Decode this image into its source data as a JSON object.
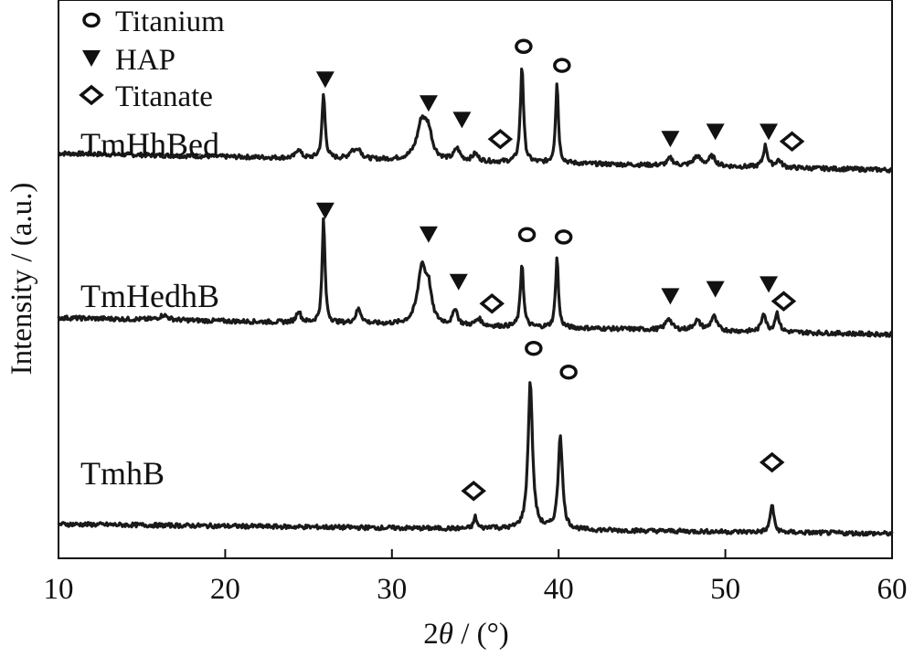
{
  "chart_data": {
    "type": "line",
    "title": "",
    "xlabel_prefix": "2",
    "xlabel_symbol": "θ",
    "xlabel_suffix": " / (°)",
    "ylabel": "Intensity / (a.u.)",
    "xlim": [
      10,
      60
    ],
    "x_ticks": [
      "10",
      "20",
      "30",
      "40",
      "50",
      "60"
    ],
    "y_ticks_shown": false,
    "grid": false,
    "legend_position": "top-left",
    "legend": [
      {
        "marker": "circle",
        "label": "Titanium"
      },
      {
        "marker": "triangle",
        "label": "HAP"
      },
      {
        "marker": "diamond",
        "label": "Titanate"
      }
    ],
    "series": [
      {
        "name": "TmHhBed",
        "baseline_start": 0.07,
        "baseline_end": 0.0,
        "peaks": [
          [
            24.4,
            0.04,
            0.3
          ],
          [
            25.9,
            0.27,
            0.22
          ],
          [
            27.6,
            0.03,
            0.4
          ],
          [
            28.0,
            0.04,
            0.4
          ],
          [
            31.8,
            0.16,
            0.7
          ],
          [
            32.2,
            0.09,
            0.5
          ],
          [
            33.9,
            0.05,
            0.4
          ],
          [
            35.0,
            0.03,
            0.4
          ],
          [
            37.8,
            0.41,
            0.22
          ],
          [
            39.9,
            0.34,
            0.2
          ],
          [
            46.7,
            0.03,
            0.4
          ],
          [
            48.3,
            0.04,
            0.5
          ],
          [
            49.2,
            0.04,
            0.5
          ],
          [
            52.4,
            0.09,
            0.3
          ],
          [
            53.2,
            0.03,
            0.4
          ]
        ],
        "markers": [
          {
            "x": 26.0,
            "y": 0.38,
            "symbol": "triangle"
          },
          {
            "x": 32.2,
            "y": 0.28,
            "symbol": "triangle"
          },
          {
            "x": 34.2,
            "y": 0.21,
            "symbol": "triangle"
          },
          {
            "x": 36.5,
            "y": 0.13,
            "symbol": "diamond"
          },
          {
            "x": 37.9,
            "y": 0.52,
            "symbol": "circle"
          },
          {
            "x": 40.2,
            "y": 0.44,
            "symbol": "circle"
          },
          {
            "x": 46.7,
            "y": 0.13,
            "symbol": "triangle"
          },
          {
            "x": 49.4,
            "y": 0.16,
            "symbol": "triangle"
          },
          {
            "x": 52.6,
            "y": 0.16,
            "symbol": "triangle"
          },
          {
            "x": 54.0,
            "y": 0.12,
            "symbol": "diamond"
          }
        ]
      },
      {
        "name": "TmHedhB",
        "baseline_start": 0.07,
        "baseline_end": 0.0,
        "peaks": [
          [
            16.3,
            0.02,
            0.6
          ],
          [
            24.4,
            0.05,
            0.3
          ],
          [
            25.9,
            0.44,
            0.2
          ],
          [
            28.0,
            0.06,
            0.4
          ],
          [
            31.8,
            0.24,
            0.6
          ],
          [
            32.2,
            0.12,
            0.4
          ],
          [
            33.8,
            0.07,
            0.3
          ],
          [
            35.2,
            0.03,
            0.4
          ],
          [
            37.8,
            0.27,
            0.22
          ],
          [
            39.9,
            0.3,
            0.2
          ],
          [
            46.6,
            0.05,
            0.4
          ],
          [
            48.3,
            0.04,
            0.5
          ],
          [
            49.3,
            0.06,
            0.4
          ],
          [
            52.3,
            0.08,
            0.3
          ],
          [
            53.1,
            0.08,
            0.3
          ]
        ],
        "markers": [
          {
            "x": 26.0,
            "y": 0.52,
            "symbol": "triangle"
          },
          {
            "x": 32.2,
            "y": 0.42,
            "symbol": "triangle"
          },
          {
            "x": 34.0,
            "y": 0.22,
            "symbol": "triangle"
          },
          {
            "x": 36.0,
            "y": 0.13,
            "symbol": "diamond"
          },
          {
            "x": 38.1,
            "y": 0.42,
            "symbol": "circle"
          },
          {
            "x": 40.3,
            "y": 0.41,
            "symbol": "circle"
          },
          {
            "x": 46.7,
            "y": 0.16,
            "symbol": "triangle"
          },
          {
            "x": 49.4,
            "y": 0.19,
            "symbol": "triangle"
          },
          {
            "x": 52.6,
            "y": 0.21,
            "symbol": "triangle"
          },
          {
            "x": 53.5,
            "y": 0.14,
            "symbol": "diamond"
          }
        ]
      },
      {
        "name": "TmhB",
        "baseline_start": 0.04,
        "baseline_end": 0.0,
        "peaks": [
          [
            35.0,
            0.05,
            0.22
          ],
          [
            36.0,
            0.01,
            0.4
          ],
          [
            38.3,
            0.62,
            0.32
          ],
          [
            40.1,
            0.4,
            0.3
          ],
          [
            52.8,
            0.12,
            0.25
          ]
        ],
        "markers": [
          {
            "x": 34.9,
            "y": 0.18,
            "symbol": "diamond"
          },
          {
            "x": 38.5,
            "y": 0.78,
            "symbol": "circle"
          },
          {
            "x": 40.6,
            "y": 0.68,
            "symbol": "circle"
          },
          {
            "x": 52.8,
            "y": 0.3,
            "symbol": "diamond"
          }
        ]
      }
    ]
  }
}
